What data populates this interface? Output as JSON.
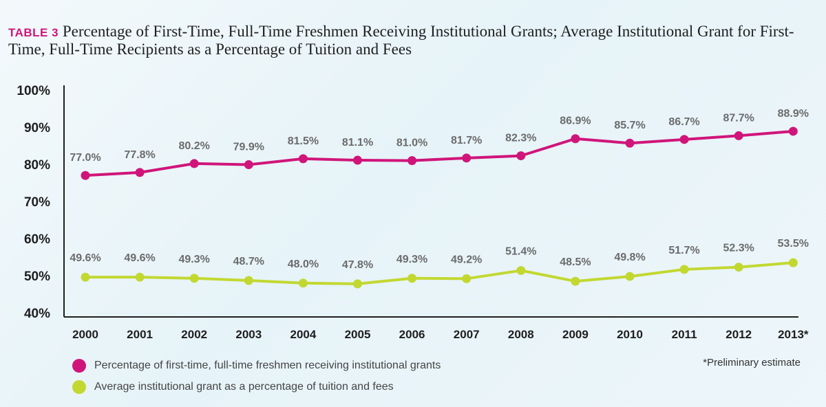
{
  "title": {
    "tag": "TABLE 3",
    "text": "Percentage of First-Time, Full-Time Freshmen Receiving Institutional Grants; Average Institutional Grant for First-Time, Full-Time Recipients as a Percentage of Tuition and Fees"
  },
  "note": "*Preliminary estimate",
  "colors": {
    "series1": "#d0157a",
    "series2": "#c2d831",
    "label": "#6b6b6b",
    "axis": "#1e1e1e"
  },
  "chart_data": {
    "type": "line",
    "title": "Percentage of First-Time, Full-Time Freshmen Receiving Institutional Grants; Average Institutional Grant for First-Time, Full-Time Recipients as a Percentage of Tuition and Fees",
    "xlabel": "",
    "ylabel": "",
    "categories": [
      "2000",
      "2001",
      "2002",
      "2003",
      "2004",
      "2005",
      "2006",
      "2007",
      "2008",
      "2009",
      "2010",
      "2011",
      "2012",
      "2013*"
    ],
    "yticks": [
      "100%",
      "90%",
      "80%",
      "70%",
      "60%",
      "50%",
      "40%"
    ],
    "ylim": [
      40,
      100
    ],
    "grid": false,
    "legend_position": "bottom-left",
    "series": [
      {
        "name": "Percentage of first-time, full-time freshmen receiving institutional grants",
        "values": [
          77.0,
          77.8,
          80.2,
          79.9,
          81.5,
          81.1,
          81.0,
          81.7,
          82.3,
          86.9,
          85.7,
          86.7,
          87.7,
          88.9
        ],
        "labels": [
          "77.0%",
          "77.8%",
          "80.2%",
          "79.9%",
          "81.5%",
          "81.1%",
          "81.0%",
          "81.7%",
          "82.3%",
          "86.9%",
          "85.7%",
          "86.7%",
          "87.7%",
          "88.9%"
        ]
      },
      {
        "name": "Average institutional grant as a percentage of tuition and fees",
        "values": [
          49.6,
          49.6,
          49.3,
          48.7,
          48.0,
          47.8,
          49.3,
          49.2,
          51.4,
          48.5,
          49.8,
          51.7,
          52.3,
          53.5
        ],
        "labels": [
          "49.6%",
          "49.6%",
          "49.3%",
          "48.7%",
          "48.0%",
          "47.8%",
          "49.3%",
          "49.2%",
          "51.4%",
          "48.5%",
          "49.8%",
          "51.7%",
          "52.3%",
          "53.5%"
        ]
      }
    ]
  }
}
